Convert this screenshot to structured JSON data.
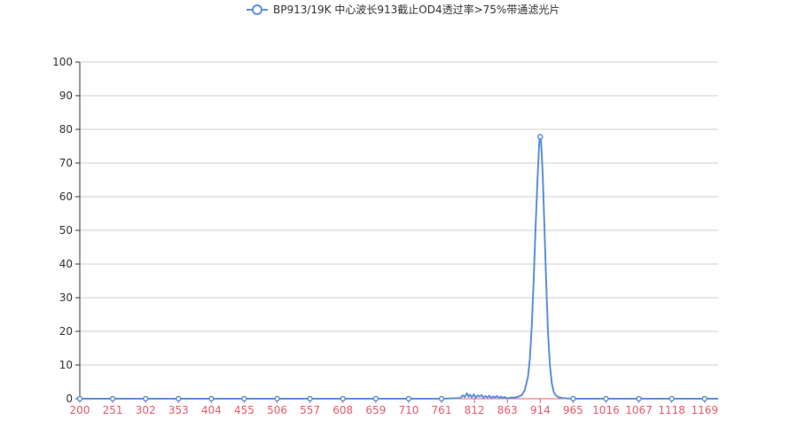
{
  "chart_data": {
    "type": "line",
    "title": "",
    "xlabel": "",
    "ylabel": "",
    "x_range": [
      200,
      1190
    ],
    "x_tick_labels": [
      "200",
      "251",
      "302",
      "353",
      "404",
      "455",
      "506",
      "557",
      "608",
      "659",
      "710",
      "761",
      "812",
      "863",
      "914",
      "965",
      "1016",
      "1067",
      "1118",
      "1169"
    ],
    "ylim": [
      0,
      100
    ],
    "y_ticks": [
      "0",
      "10",
      "20",
      "30",
      "40",
      "50",
      "60",
      "70",
      "80",
      "90",
      "100"
    ],
    "grid": true,
    "legend": {
      "position": "top-center",
      "show": true
    },
    "series": [
      {
        "name": "BP913/19K 中心波长913截止OD4透过率>75%带通滤光片",
        "color": "#5b8fdd",
        "x": [
          200,
          251,
          302,
          353,
          404,
          455,
          506,
          557,
          608,
          659,
          710,
          761,
          790,
          794,
          797,
          800,
          803,
          805,
          808,
          811,
          814,
          817,
          820,
          823,
          826,
          829,
          832,
          835,
          838,
          841,
          844,
          847,
          850,
          853,
          856,
          859,
          862,
          865,
          868,
          875,
          880,
          885,
          890,
          895,
          898,
          901,
          904,
          907,
          910,
          912,
          913,
          914,
          915,
          916,
          918,
          920,
          923,
          926,
          929,
          932,
          935,
          938,
          942,
          948,
          955,
          965,
          1016,
          1067,
          1118,
          1169,
          1190
        ],
        "y": [
          0,
          0,
          0,
          0,
          0,
          0,
          0,
          0,
          0,
          0,
          0,
          0,
          0.2,
          1.0,
          0.5,
          1.6,
          0.6,
          1.2,
          0.4,
          1.3,
          0.3,
          1.0,
          0.6,
          1.1,
          0.3,
          0.8,
          0.4,
          0.9,
          0.2,
          0.7,
          0.4,
          0.8,
          0.2,
          0.6,
          0.3,
          0.5,
          0.1,
          0.2,
          0.3,
          0.4,
          0.6,
          1.0,
          2.5,
          6.5,
          12,
          22,
          36,
          52,
          66,
          74,
          77.5,
          77.8,
          77,
          74,
          66,
          54,
          36,
          20,
          10,
          4.5,
          2,
          1,
          0.5,
          0.2,
          0.1,
          0,
          0,
          0,
          0,
          0,
          0
        ]
      }
    ]
  }
}
